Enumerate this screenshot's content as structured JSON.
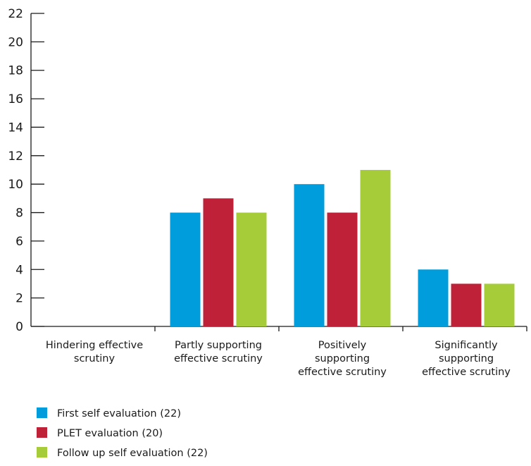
{
  "chart_data": {
    "type": "bar",
    "title": "",
    "xlabel": "",
    "ylabel": "",
    "ylim": [
      0,
      22
    ],
    "yticks": [
      0,
      2,
      4,
      6,
      8,
      10,
      12,
      14,
      16,
      18,
      20,
      22
    ],
    "grid": false,
    "legend_position": "bottom-left",
    "categories": [
      [
        "Hindering effective",
        "scrutiny"
      ],
      [
        "Partly supporting",
        "effective scrutiny"
      ],
      [
        "Positively",
        "supporting",
        "effective scrutiny"
      ],
      [
        "Significantly",
        "supporting",
        "effective scrutiny"
      ]
    ],
    "series": [
      {
        "name": "First self evaluation (22)",
        "color": "#009ddc",
        "values": [
          0,
          8,
          10,
          4
        ]
      },
      {
        "name": "PLET evaluation (20)",
        "color": "#be2138",
        "values": [
          0,
          9,
          8,
          3
        ]
      },
      {
        "name": "Follow up self evaluation (22)",
        "color": "#a6cd39",
        "values": [
          0,
          8,
          11,
          3
        ]
      }
    ]
  }
}
